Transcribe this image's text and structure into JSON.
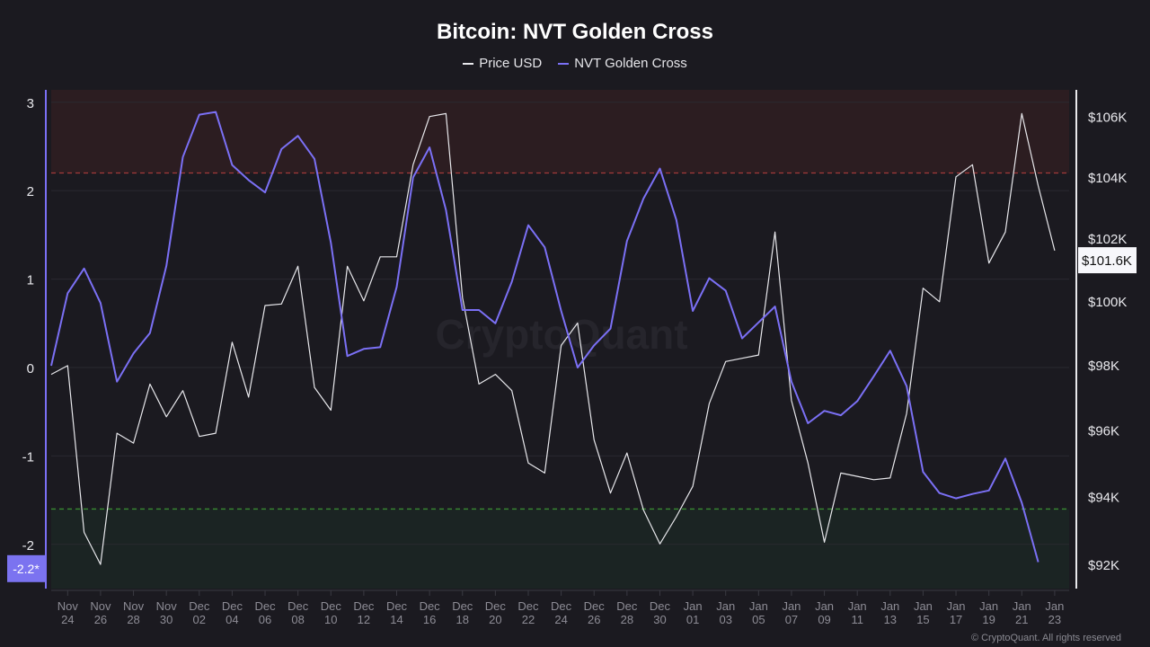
{
  "chart_data": {
    "type": "line",
    "title": "Bitcoin: NVT Golden Cross",
    "legend_position": "top-center",
    "grid": true,
    "x_tick_labels": [
      "Nov 24",
      "Nov 26",
      "Nov 28",
      "Nov 30",
      "Dec 02",
      "Dec 04",
      "Dec 06",
      "Dec 08",
      "Dec 10",
      "Dec 12",
      "Dec 14",
      "Dec 16",
      "Dec 18",
      "Dec 20",
      "Dec 22",
      "Dec 24",
      "Dec 26",
      "Dec 28",
      "Dec 30",
      "Jan 01",
      "Jan 03",
      "Jan 05",
      "Jan 07",
      "Jan 09",
      "Jan 11",
      "Jan 13",
      "Jan 15",
      "Jan 17",
      "Jan 19",
      "Jan 21",
      "Jan 23"
    ],
    "x": [
      "Nov 23",
      "Nov 24",
      "Nov 25",
      "Nov 26",
      "Nov 27",
      "Nov 28",
      "Nov 29",
      "Nov 30",
      "Dec 01",
      "Dec 02",
      "Dec 03",
      "Dec 04",
      "Dec 05",
      "Dec 06",
      "Dec 07",
      "Dec 08",
      "Dec 09",
      "Dec 10",
      "Dec 11",
      "Dec 12",
      "Dec 13",
      "Dec 14",
      "Dec 15",
      "Dec 16",
      "Dec 17",
      "Dec 18",
      "Dec 19",
      "Dec 20",
      "Dec 21",
      "Dec 22",
      "Dec 23",
      "Dec 24",
      "Dec 25",
      "Dec 26",
      "Dec 27",
      "Dec 28",
      "Dec 29",
      "Dec 30",
      "Dec 31",
      "Jan 01",
      "Jan 02",
      "Jan 03",
      "Jan 04",
      "Jan 05",
      "Jan 06",
      "Jan 07",
      "Jan 08",
      "Jan 09",
      "Jan 10",
      "Jan 11",
      "Jan 12",
      "Jan 13",
      "Jan 14",
      "Jan 15",
      "Jan 16",
      "Jan 17",
      "Jan 18",
      "Jan 19",
      "Jan 20",
      "Jan 21",
      "Jan 22",
      "Jan 23"
    ],
    "series": [
      {
        "name": "Price USD",
        "axis": "right",
        "unit": "USD thousands",
        "color": "#e8e8ec",
        "values": [
          97.7,
          97.97,
          92.94,
          92.0,
          95.9,
          95.6,
          97.4,
          96.4,
          97.2,
          95.8,
          95.9,
          98.7,
          97.0,
          99.85,
          99.9,
          101.1,
          97.3,
          96.6,
          101.1,
          100.0,
          101.4,
          101.4,
          104.4,
          106.0,
          106.1,
          100.1,
          97.4,
          97.7,
          97.2,
          95.0,
          94.7,
          98.6,
          99.3,
          95.7,
          94.1,
          95.3,
          93.6,
          92.6,
          93.4,
          94.3,
          96.8,
          98.1,
          98.2,
          98.3,
          102.2,
          96.9,
          95.0,
          92.65,
          94.7,
          94.6,
          94.5,
          94.55,
          96.5,
          100.4,
          99.97,
          104.0,
          104.4,
          101.2,
          102.2,
          106.1,
          103.7,
          101.6
        ]
      },
      {
        "name": "NVT Golden Cross",
        "axis": "left",
        "color": "#7b70f5",
        "values": [
          0.02,
          0.84,
          1.12,
          0.73,
          -0.16,
          0.16,
          0.39,
          1.15,
          2.38,
          2.86,
          2.89,
          2.29,
          2.12,
          1.98,
          2.47,
          2.62,
          2.36,
          1.41,
          0.13,
          0.21,
          0.23,
          0.91,
          2.15,
          2.49,
          1.78,
          0.65,
          0.65,
          0.5,
          0.97,
          1.61,
          1.36,
          0.64,
          0.0,
          0.25,
          0.44,
          1.43,
          1.91,
          2.25,
          1.67,
          0.64,
          1.01,
          0.87,
          0.33,
          0.51,
          0.69,
          -0.16,
          -0.63,
          -0.49,
          -0.54,
          -0.38,
          -0.1,
          0.19,
          -0.21,
          -1.18,
          -1.42,
          -1.48,
          -1.43,
          -1.39,
          -1.03,
          -1.53,
          -2.2,
          null
        ]
      }
    ],
    "left_axis": {
      "ticks": [
        3,
        2,
        1,
        0,
        -1,
        -2
      ],
      "tick_labels": [
        "3",
        "2",
        "1",
        "0",
        "-1",
        "-2"
      ],
      "range": [
        -2.5,
        3.14
      ],
      "color": "#7b70f5"
    },
    "right_axis": {
      "scale": "log",
      "ticks": [
        106,
        104,
        102,
        100,
        98,
        96,
        94,
        92
      ],
      "tick_labels": [
        "$106K",
        "$104K",
        "$102K",
        "$100K",
        "$98K",
        "$96K",
        "$94K",
        "$92K"
      ],
      "range": [
        91.3,
        106.9
      ]
    },
    "thresholds": {
      "overheated": 2.2,
      "undervalued": -1.6,
      "overheated_color": "#a33a3a",
      "undervalued_color": "#3a8a32"
    },
    "last_value_labels": {
      "left": "-2.2*",
      "right": "$101.6K"
    }
  },
  "watermark": "CryptoQuant",
  "copyright": "© CryptoQuant. All rights reserved",
  "colors": {
    "background": "#1b1a20",
    "overheated_band": "#2c1d21",
    "undervalued_band": "#1b2423"
  }
}
